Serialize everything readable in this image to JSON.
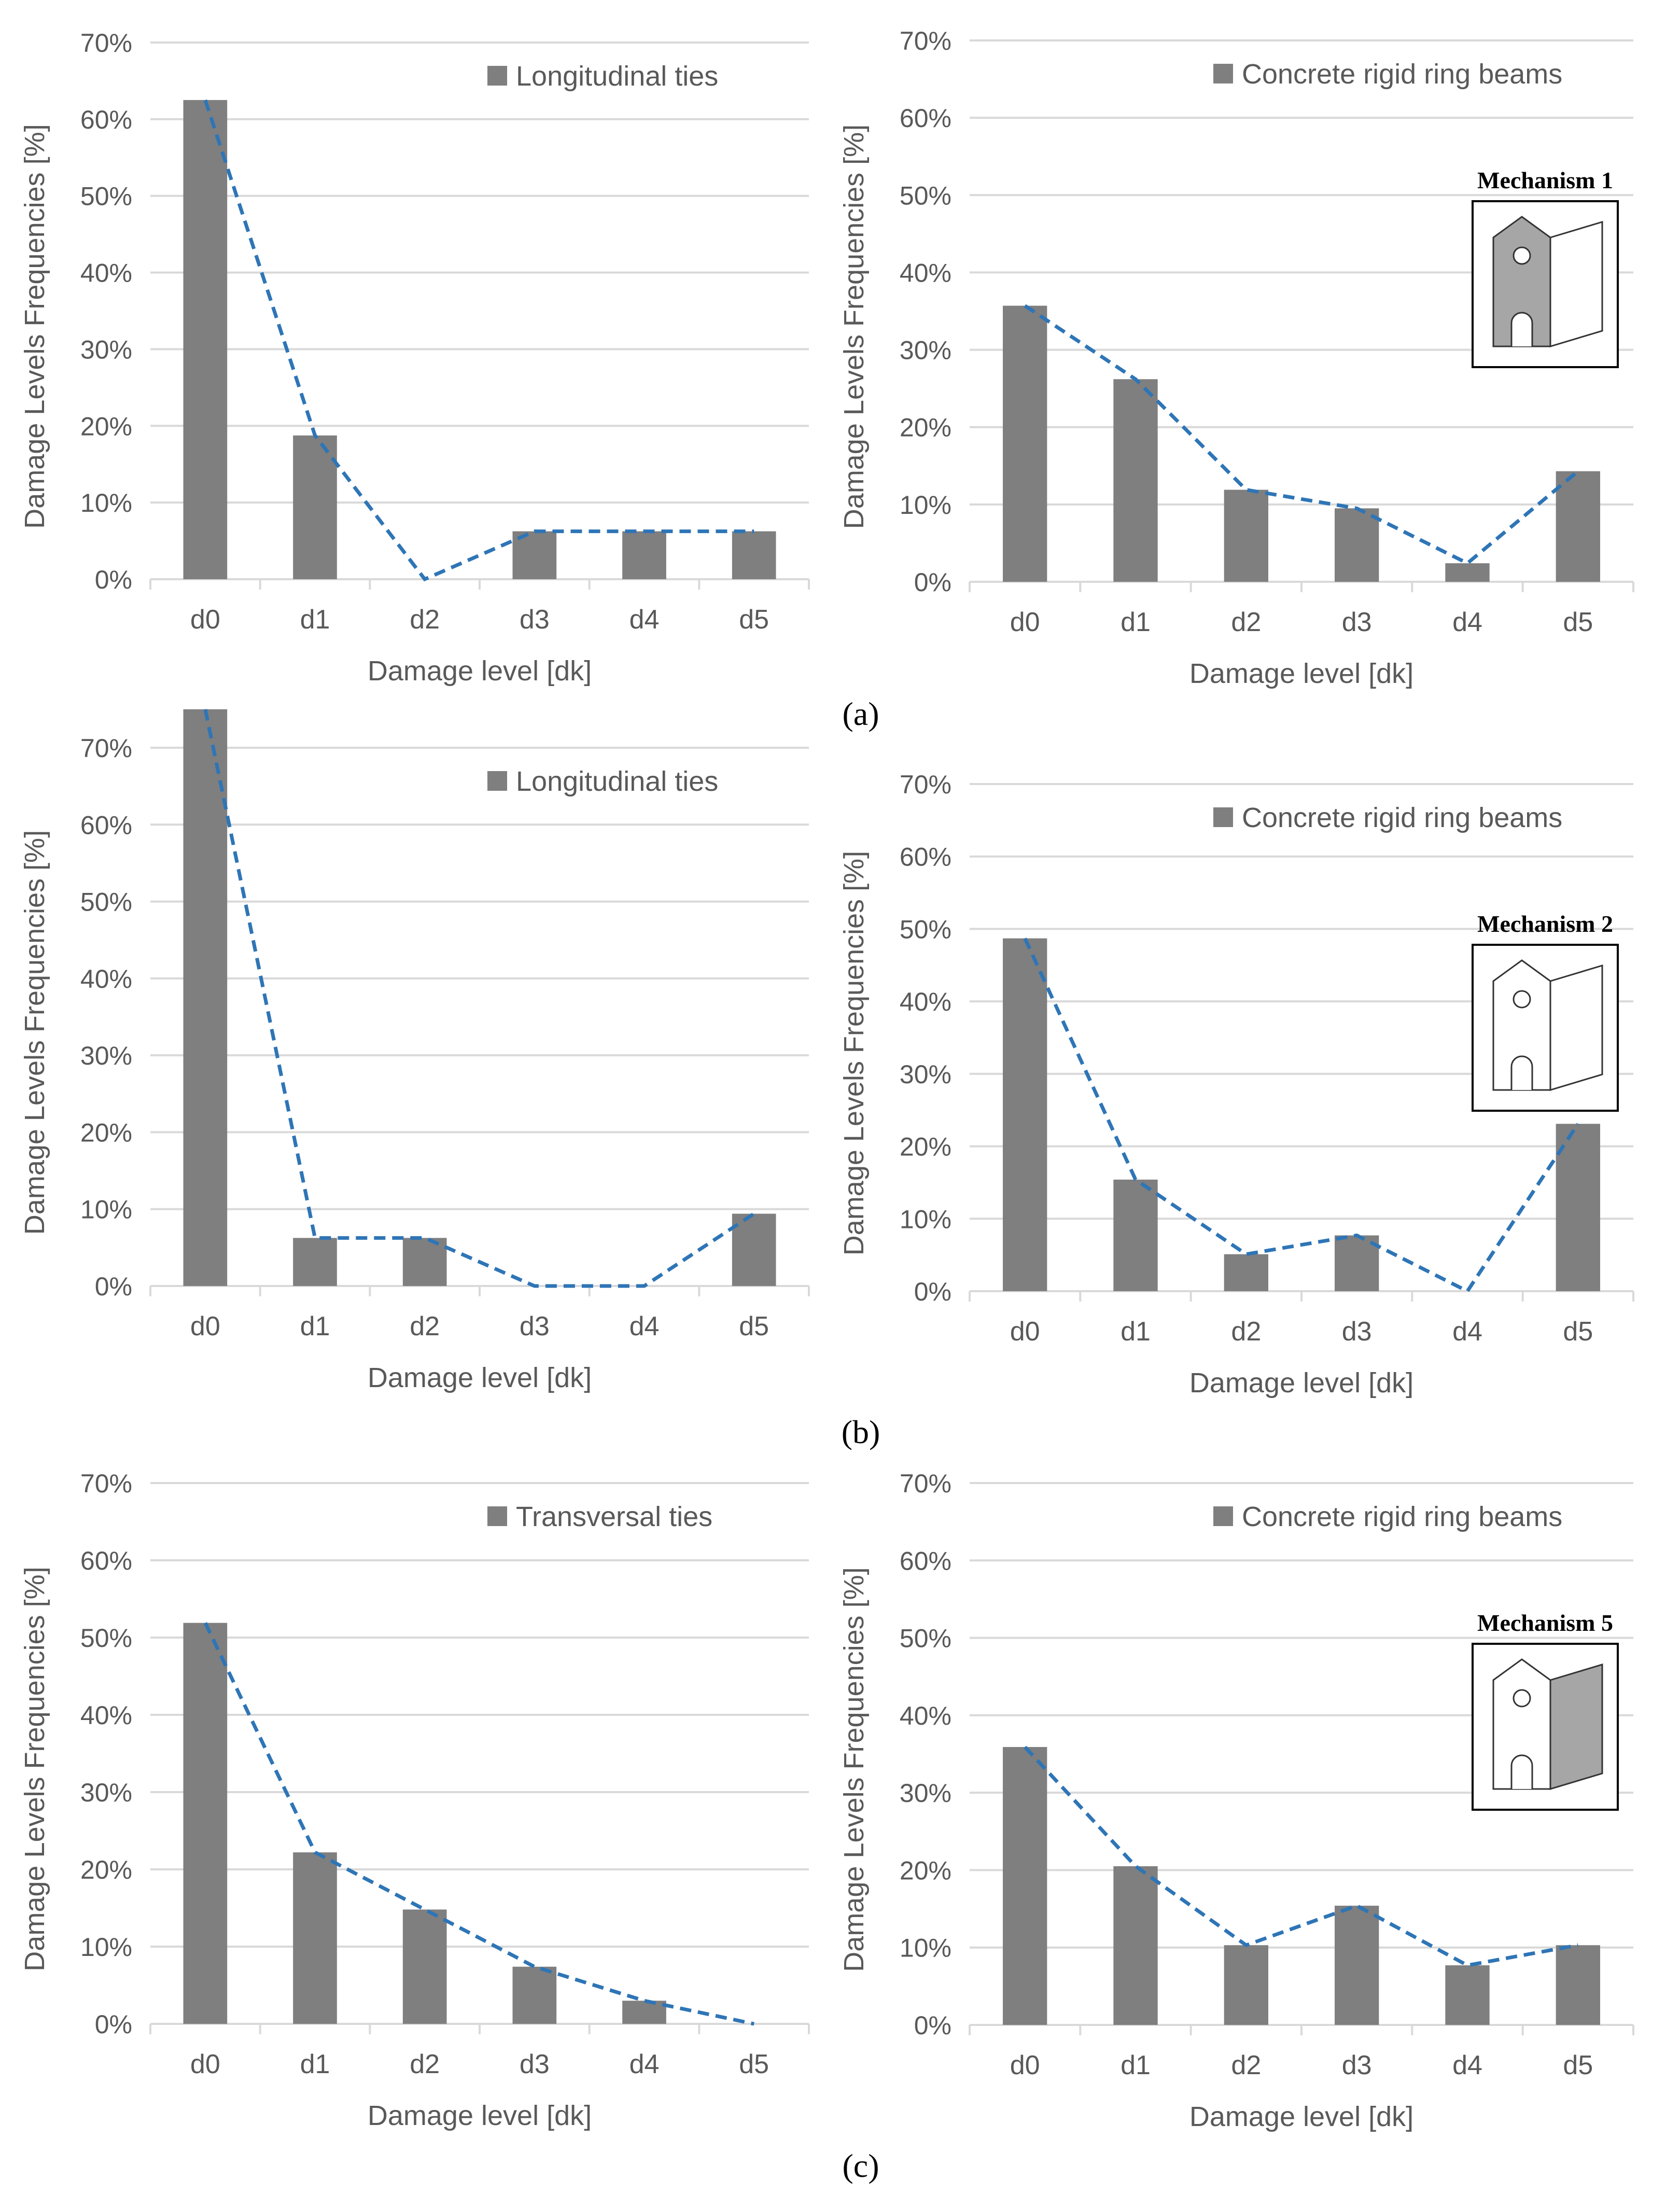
{
  "captions": {
    "a": "(a)",
    "b": "(b)",
    "c": "(c)"
  },
  "colors": {
    "bar": "#7f7f7f",
    "line": "#2e75b6",
    "axis": "#d9d9d9",
    "text": "#595959"
  },
  "chart_data": [
    {
      "type": "bar",
      "row": "a",
      "title": "",
      "legend": "Longitudinal ties",
      "categories": [
        "d0",
        "d1",
        "d2",
        "d3",
        "d4",
        "d5"
      ],
      "values": [
        62.5,
        18.75,
        0,
        6.25,
        6.25,
        6.25
      ],
      "line_values": [
        62.5,
        18.75,
        0,
        6.25,
        6.25,
        6.25
      ],
      "ymax": 70,
      "yticks": [
        "0%",
        "10%",
        "20%",
        "30%",
        "40%",
        "50%",
        "60%",
        "70%"
      ],
      "xlabel": "Damage level [dk]",
      "ylabel": "Damage Levels Frequencies [%]",
      "inset": null
    },
    {
      "type": "bar",
      "row": "a",
      "title": "",
      "legend": "Concrete rigid ring beams",
      "categories": [
        "d0",
        "d1",
        "d2",
        "d3",
        "d4",
        "d5"
      ],
      "values": [
        35.7,
        26.2,
        11.9,
        9.5,
        2.4,
        14.3
      ],
      "line_values": [
        35.7,
        26.2,
        11.9,
        9.5,
        2.4,
        14.3
      ],
      "ymax": 70,
      "yticks": [
        "0%",
        "10%",
        "20%",
        "30%",
        "40%",
        "50%",
        "60%",
        "70%"
      ],
      "xlabel": "Damage level [dk]",
      "ylabel": "Damage Levels Frequencies [%]",
      "inset": "Mechanism 1"
    },
    {
      "type": "bar",
      "row": "b",
      "title": "",
      "legend": "Longitudinal ties",
      "categories": [
        "d0",
        "d1",
        "d2",
        "d3",
        "d4",
        "d5"
      ],
      "values": [
        75,
        6.25,
        6.25,
        0,
        0,
        9.4
      ],
      "line_values": [
        75,
        6.25,
        6.25,
        0,
        0,
        9.4
      ],
      "ymax": 75,
      "yticks": [
        "0%",
        "10%",
        "20%",
        "30%",
        "40%",
        "50%",
        "60%",
        "70%"
      ],
      "xlabel": "Damage level [dk]",
      "ylabel": "Damage Levels Frequencies [%]",
      "inset": null
    },
    {
      "type": "bar",
      "row": "b",
      "title": "",
      "legend": "Concrete rigid ring beams",
      "categories": [
        "d0",
        "d1",
        "d2",
        "d3",
        "d4",
        "d5"
      ],
      "values": [
        48.7,
        15.4,
        5.1,
        7.7,
        0,
        23.1
      ],
      "line_values": [
        48.7,
        15.4,
        5.1,
        7.7,
        0,
        23.1
      ],
      "ymax": 70,
      "yticks": [
        "0%",
        "10%",
        "20%",
        "30%",
        "40%",
        "50%",
        "60%",
        "70%"
      ],
      "xlabel": "Damage level [dk]",
      "ylabel": "Damage Levels Frequencies [%]",
      "inset": "Mechanism 2"
    },
    {
      "type": "bar",
      "row": "c",
      "title": "",
      "legend": "Transversal ties",
      "categories": [
        "d0",
        "d1",
        "d2",
        "d3",
        "d4",
        "d5"
      ],
      "values": [
        51.9,
        22.2,
        14.8,
        7.4,
        3.0,
        0
      ],
      "line_values": [
        51.9,
        22.2,
        14.8,
        7.4,
        3.0,
        0
      ],
      "ymax": 70,
      "yticks": [
        "0%",
        "10%",
        "20%",
        "30%",
        "40%",
        "50%",
        "60%",
        "70%"
      ],
      "xlabel": "Damage level [dk]",
      "ylabel": "Damage Levels Frequencies [%]",
      "inset": null
    },
    {
      "type": "bar",
      "row": "c",
      "title": "",
      "legend": "Concrete rigid ring beams",
      "categories": [
        "d0",
        "d1",
        "d2",
        "d3",
        "d4",
        "d5"
      ],
      "values": [
        35.9,
        20.5,
        10.3,
        15.4,
        7.7,
        10.3
      ],
      "line_values": [
        35.9,
        20.5,
        10.3,
        15.4,
        7.7,
        10.3
      ],
      "ymax": 70,
      "yticks": [
        "0%",
        "10%",
        "20%",
        "30%",
        "40%",
        "50%",
        "60%",
        "70%"
      ],
      "xlabel": "Damage level [dk]",
      "ylabel": "Damage Levels Frequencies [%]",
      "inset": "Mechanism 5"
    }
  ]
}
